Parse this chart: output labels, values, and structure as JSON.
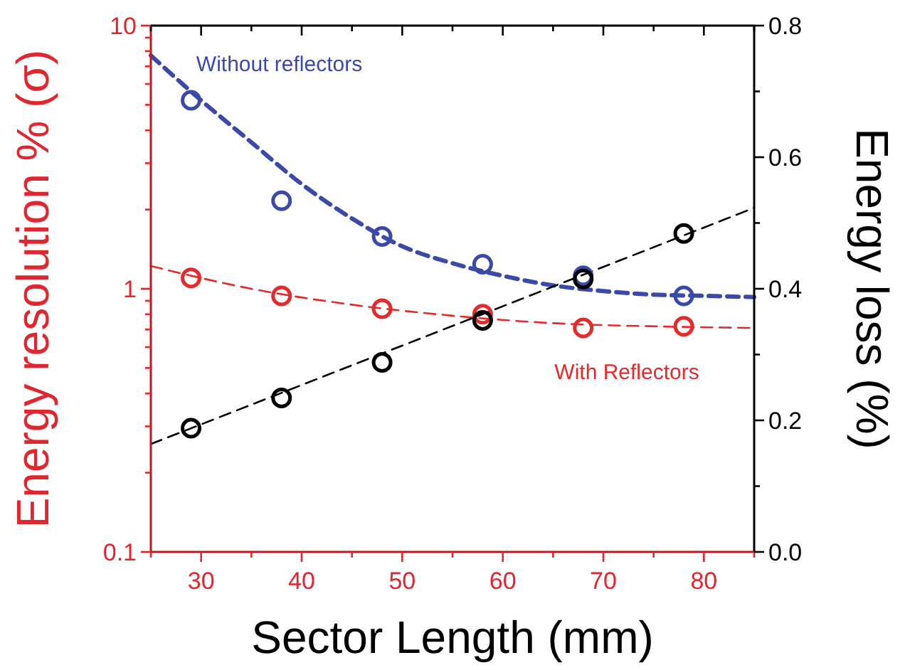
{
  "chart_data": {
    "type": "scatter",
    "xlabel": "Sector Length (mm)",
    "ylabel": "Energy resolution % (σ)",
    "y2label": "Energy loss (%)",
    "log": "y",
    "marker": "circle",
    "grid": false,
    "xlim": [
      25,
      85
    ],
    "xticks": [
      {
        "value": 25,
        "label": null
      },
      30,
      {
        "value": 35,
        "label": null
      },
      40,
      {
        "value": 45,
        "label": null
      },
      50,
      {
        "value": 55,
        "label": null
      },
      60,
      {
        "value": 65,
        "label": null
      },
      70,
      {
        "value": 75,
        "label": null
      },
      80,
      {
        "value": 85,
        "label": null
      }
    ],
    "ylim": [
      0.1,
      10
    ],
    "yticks": [
      0.1,
      {
        "value": 0.2,
        "label": null
      },
      {
        "value": 0.3,
        "label": null
      },
      {
        "value": 0.4,
        "label": null
      },
      {
        "value": 0.5,
        "label": null
      },
      {
        "value": 0.6,
        "label": null
      },
      {
        "value": 0.7,
        "label": null
      },
      {
        "value": 0.8,
        "label": null
      },
      {
        "value": 0.9,
        "label": null
      },
      1,
      {
        "value": 2,
        "label": null
      },
      {
        "value": 3,
        "label": null
      },
      {
        "value": 4,
        "label": null
      },
      {
        "value": 5,
        "label": null
      },
      {
        "value": 6,
        "label": null
      },
      {
        "value": 7,
        "label": null
      },
      {
        "value": 8,
        "label": null
      },
      {
        "value": 9,
        "label": null
      },
      10
    ],
    "y2lim": [
      0,
      0.8
    ],
    "y2ticks": [
      {
        "value": 0,
        "label": "0.0"
      },
      {
        "value": 0.1,
        "label": null
      },
      0.2,
      {
        "value": 0.3,
        "label": null
      },
      0.4,
      {
        "value": 0.5,
        "label": null
      },
      0.6,
      {
        "value": 0.7,
        "label": null
      },
      0.8
    ],
    "series": [
      {
        "type": "line",
        "marker": "none",
        "color": "#3b4aa8",
        "line_style": "dashed",
        "x": [
          25,
          30,
          35,
          40,
          45,
          50,
          55,
          60,
          65,
          70,
          75,
          80,
          85
        ],
        "values": [
          7.7,
          5.2,
          3.6,
          2.5,
          1.85,
          1.45,
          1.25,
          1.12,
          1.03,
          0.98,
          0.95,
          0.94,
          0.93
        ]
      },
      {
        "type": "line",
        "marker": "none",
        "color": "#e32b2b",
        "line_style": "dashed",
        "x": [
          25,
          35,
          45,
          55,
          65,
          75,
          85
        ],
        "values": [
          1.22,
          1.0,
          0.87,
          0.79,
          0.74,
          0.72,
          0.71
        ]
      },
      {
        "type": "line",
        "marker": "none",
        "color": "#000000",
        "line_style": "dashed",
        "axis": "y2",
        "x": [
          25,
          85
        ],
        "values": [
          0.164,
          0.523
        ]
      },
      {
        "name": "Without reflectors",
        "color": "#3b4aa8",
        "x": [
          29,
          38,
          48,
          58,
          68,
          78
        ],
        "values": [
          5.2,
          2.16,
          1.58,
          1.24,
          1.12,
          0.94
        ]
      },
      {
        "name": "With Reflectors",
        "color": "#e32b2b",
        "x": [
          29,
          38,
          48,
          58,
          68,
          78
        ],
        "values": [
          1.1,
          0.94,
          0.84,
          0.8,
          0.71,
          0.72
        ]
      },
      {
        "color": "#000000",
        "axis": "y2",
        "x": [
          29,
          38,
          48,
          58,
          68,
          78
        ],
        "values": [
          0.188,
          0.234,
          0.288,
          0.352,
          0.415,
          0.484
        ]
      }
    ]
  }
}
